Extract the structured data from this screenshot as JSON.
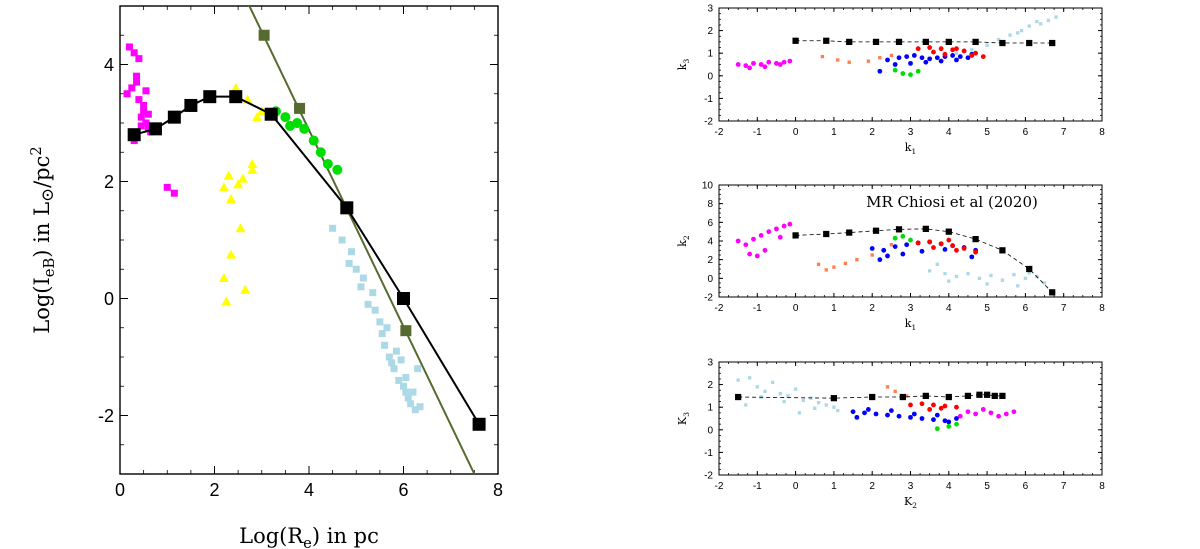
{
  "chart_data": [
    {
      "type": "scatter",
      "title": "",
      "xlabel": "Log(R",
      "xlabel_sub": "e",
      "xlabel_tail": ")  in pc",
      "ylabel": "Log(I",
      "ylabel_sub": "eB",
      "ylabel_tail": ")  in L",
      "ylabel_unit": "/pc",
      "xlim": [
        0,
        8
      ],
      "ylim": [
        -3,
        5
      ],
      "xticks": [
        "0",
        "2",
        "4",
        "6",
        "8"
      ],
      "yticks": [
        "-2",
        "0",
        "2",
        "4"
      ],
      "series": [
        {
          "name": "black-track",
          "color": "#000000",
          "marker": "square-line",
          "x": [
            0.3,
            0.75,
            1.15,
            1.5,
            1.9,
            2.45,
            3.2,
            4.8,
            6.0,
            7.6
          ],
          "y": [
            2.8,
            2.9,
            3.1,
            3.3,
            3.45,
            3.45,
            3.15,
            1.55,
            0.0,
            -2.15
          ]
        },
        {
          "name": "olive-line",
          "color": "#556b2f",
          "marker": "line",
          "x": [
            2.5,
            7.5
          ],
          "y": [
            5.4,
            -3.0
          ]
        },
        {
          "name": "olive-points",
          "color": "#556b2f",
          "marker": "square",
          "x": [
            3.05,
            3.8,
            6.05
          ],
          "y": [
            4.5,
            3.25,
            -0.55
          ]
        },
        {
          "name": "magenta",
          "color": "#ff00ff",
          "marker": "square",
          "x": [
            0.2,
            0.3,
            0.35,
            0.25,
            0.4,
            0.5,
            0.45,
            0.55,
            0.6,
            0.35,
            0.15,
            0.5,
            0.65,
            1.0,
            1.15,
            0.3,
            0.4,
            0.55,
            0.45,
            0.6
          ],
          "y": [
            4.3,
            4.2,
            3.8,
            3.6,
            3.4,
            3.3,
            3.1,
            3.0,
            2.9,
            3.7,
            3.5,
            3.2,
            2.85,
            1.9,
            1.8,
            2.7,
            4.1,
            3.55,
            2.95,
            3.15
          ]
        },
        {
          "name": "yellow",
          "color": "#ffff00",
          "marker": "triangle",
          "x": [
            2.2,
            2.3,
            2.35,
            2.5,
            2.6,
            2.8,
            3.0,
            2.9,
            2.45,
            2.7,
            2.55,
            2.2,
            2.35,
            2.8,
            2.25,
            2.65
          ],
          "y": [
            1.9,
            2.1,
            1.7,
            1.95,
            2.05,
            2.2,
            3.2,
            3.1,
            3.6,
            3.4,
            1.2,
            0.35,
            0.75,
            2.3,
            -0.05,
            0.15
          ]
        },
        {
          "name": "green",
          "color": "#00dd00",
          "marker": "circle",
          "x": [
            3.3,
            3.5,
            3.75,
            3.9,
            4.1,
            4.25,
            4.4,
            4.6,
            3.6
          ],
          "y": [
            3.2,
            3.1,
            3.0,
            2.9,
            2.7,
            2.5,
            2.3,
            2.2,
            2.95
          ]
        },
        {
          "name": "lightblue",
          "color": "#add8e6",
          "marker": "square",
          "x": [
            4.5,
            4.7,
            4.9,
            5.0,
            5.1,
            5.25,
            5.4,
            5.5,
            5.55,
            5.6,
            5.7,
            5.75,
            5.8,
            5.9,
            6.0,
            6.05,
            6.1,
            6.15,
            6.2,
            6.25,
            6.3,
            5.35,
            5.65,
            5.85,
            6.05,
            4.85,
            5.15,
            6.35,
            5.95
          ],
          "y": [
            1.2,
            1.0,
            0.8,
            0.5,
            0.2,
            -0.1,
            -0.2,
            -0.4,
            -0.6,
            -0.8,
            -1.0,
            -1.1,
            -1.2,
            -1.4,
            -1.5,
            -1.6,
            -1.7,
            -1.8,
            -1.6,
            -1.9,
            -1.2,
            0.1,
            -0.5,
            -0.9,
            -1.35,
            0.6,
            0.35,
            -1.85,
            -1.05
          ]
        }
      ]
    },
    {
      "type": "scatter",
      "xlabel": "k",
      "xlabel_sub": "1",
      "ylabel": "k",
      "ylabel_sub": "3",
      "xlim": [
        -2,
        8
      ],
      "ylim": [
        -2,
        3
      ],
      "xticks": [
        "-2",
        "-1",
        "0",
        "1",
        "2",
        "3",
        "4",
        "5",
        "6",
        "7",
        "8"
      ],
      "yticks": [
        "-2",
        "-1",
        "0",
        "1",
        "2",
        "3"
      ],
      "series": [
        {
          "name": "black-dashed",
          "color": "#000000",
          "marker": "square-dashed",
          "x": [
            0.0,
            0.8,
            1.4,
            2.1,
            2.7,
            3.4,
            4.0,
            4.7,
            5.4,
            6.1,
            6.7
          ],
          "y": [
            1.55,
            1.55,
            1.5,
            1.5,
            1.5,
            1.5,
            1.5,
            1.5,
            1.45,
            1.45,
            1.45
          ]
        },
        {
          "name": "magenta",
          "color": "#ff00ff",
          "marker": "circle",
          "x": [
            -1.5,
            -1.3,
            -1.1,
            -0.9,
            -0.7,
            -0.5,
            -0.3,
            -0.15,
            -1.2,
            -0.8,
            -0.4
          ],
          "y": [
            0.5,
            0.45,
            0.55,
            0.5,
            0.6,
            0.55,
            0.6,
            0.65,
            0.35,
            0.4,
            0.5
          ]
        },
        {
          "name": "orange",
          "color": "#ff7f50",
          "marker": "square",
          "x": [
            0.7,
            1.1,
            1.4,
            1.9,
            2.2,
            2.5
          ],
          "y": [
            0.85,
            0.7,
            0.6,
            0.65,
            0.8,
            0.9
          ]
        },
        {
          "name": "lightblue",
          "color": "#add8e6",
          "marker": "square",
          "x": [
            4.2,
            4.6,
            5.0,
            5.3,
            5.6,
            5.9,
            6.1,
            6.4,
            6.6,
            6.8,
            5.8,
            6.3
          ],
          "y": [
            1.0,
            1.15,
            1.35,
            1.6,
            1.8,
            2.0,
            2.2,
            2.3,
            2.45,
            2.6,
            1.9,
            2.4
          ]
        },
        {
          "name": "green",
          "color": "#00dd00",
          "marker": "circle",
          "x": [
            2.6,
            2.8,
            3.0,
            3.2
          ],
          "y": [
            0.25,
            0.1,
            0.05,
            0.2
          ]
        },
        {
          "name": "red",
          "color": "#ff0000",
          "marker": "circle",
          "x": [
            3.2,
            3.5,
            3.8,
            4.1,
            4.4,
            4.7,
            3.6,
            4.2,
            4.6,
            3.9,
            4.9
          ],
          "y": [
            1.2,
            1.25,
            1.2,
            1.15,
            1.1,
            1.0,
            1.05,
            1.2,
            0.9,
            0.95,
            0.85
          ]
        },
        {
          "name": "blue",
          "color": "#0000ff",
          "marker": "circle",
          "x": [
            2.4,
            2.7,
            2.9,
            3.1,
            3.3,
            3.5,
            3.7,
            3.9,
            4.1,
            4.3,
            4.5,
            2.6,
            3.0,
            3.4,
            3.8,
            4.2,
            2.2,
            4.6
          ],
          "y": [
            0.7,
            0.8,
            0.85,
            0.9,
            0.8,
            0.75,
            0.8,
            0.85,
            0.9,
            0.85,
            0.8,
            0.5,
            0.55,
            0.6,
            0.65,
            0.7,
            0.2,
            0.95
          ]
        }
      ]
    },
    {
      "type": "scatter",
      "annotation": "MR Chiosi et al (2020)",
      "xlabel": "k",
      "xlabel_sub": "1",
      "ylabel": "k",
      "ylabel_sub": "2",
      "xlim": [
        -2,
        8
      ],
      "ylim": [
        -2,
        10
      ],
      "xticks": [
        "-2",
        "-1",
        "0",
        "1",
        "2",
        "3",
        "4",
        "5",
        "6",
        "7",
        "8"
      ],
      "yticks": [
        "-2",
        "0",
        "2",
        "4",
        "6",
        "8",
        "10"
      ],
      "series": [
        {
          "name": "black-dashed",
          "color": "#000000",
          "marker": "square-dashed",
          "x": [
            0.0,
            0.8,
            1.4,
            2.1,
            2.7,
            3.4,
            4.0,
            4.7,
            5.4,
            6.1,
            6.7
          ],
          "y": [
            4.6,
            4.75,
            4.9,
            5.1,
            5.25,
            5.3,
            5.0,
            4.2,
            3.0,
            1.0,
            -1.5
          ]
        },
        {
          "name": "magenta",
          "color": "#ff00ff",
          "marker": "circle",
          "x": [
            -1.5,
            -1.3,
            -1.1,
            -0.9,
            -0.7,
            -0.5,
            -0.3,
            -0.15,
            -1.2,
            -0.8,
            -0.4,
            -1.0
          ],
          "y": [
            4.0,
            3.6,
            4.2,
            4.6,
            5.0,
            5.3,
            5.6,
            5.8,
            2.6,
            3.0,
            4.4,
            2.4
          ]
        },
        {
          "name": "orange",
          "color": "#ff7f50",
          "marker": "square",
          "x": [
            0.6,
            0.8,
            1.0,
            1.3,
            1.6,
            2.0,
            2.5
          ],
          "y": [
            1.5,
            0.9,
            1.2,
            1.6,
            2.0,
            2.5,
            3.6
          ]
        },
        {
          "name": "lightblue",
          "color": "#add8e6",
          "marker": "square",
          "x": [
            3.5,
            3.9,
            4.2,
            4.5,
            4.8,
            5.1,
            5.4,
            5.7,
            6.0,
            6.3,
            6.5,
            4.0,
            5.0,
            5.8,
            3.7,
            6.1
          ],
          "y": [
            0.8,
            0.5,
            0.2,
            0.5,
            0.0,
            0.3,
            -0.2,
            0.4,
            0.0,
            0.2,
            -0.5,
            -0.3,
            -0.6,
            -0.8,
            1.5,
            0.6
          ]
        },
        {
          "name": "green",
          "color": "#00dd00",
          "marker": "circle",
          "x": [
            2.6,
            2.8,
            3.0
          ],
          "y": [
            4.3,
            4.5,
            4.1
          ]
        },
        {
          "name": "red",
          "color": "#ff0000",
          "marker": "circle",
          "x": [
            3.2,
            3.5,
            3.8,
            4.1,
            4.4,
            4.7,
            3.6,
            4.2,
            4.0
          ],
          "y": [
            3.8,
            3.9,
            3.7,
            3.5,
            3.2,
            2.8,
            3.3,
            3.0,
            4.1
          ]
        },
        {
          "name": "blue",
          "color": "#0000ff",
          "marker": "circle",
          "x": [
            2.0,
            2.3,
            2.6,
            2.9,
            3.2,
            3.5,
            3.8,
            4.1,
            4.4,
            4.7,
            2.4,
            2.8,
            3.3,
            3.9,
            2.2,
            4.6
          ],
          "y": [
            3.2,
            3.0,
            3.4,
            3.6,
            3.8,
            3.9,
            3.7,
            3.5,
            3.3,
            3.0,
            2.4,
            2.6,
            2.9,
            3.1,
            2.0,
            2.3
          ]
        }
      ]
    },
    {
      "type": "scatter",
      "xlabel": "K",
      "xlabel_sub": "2",
      "ylabel": "K",
      "ylabel_sub": "3",
      "xlim": [
        -2,
        8
      ],
      "ylim": [
        -2,
        3
      ],
      "xticks": [
        "-2",
        "-1",
        "0",
        "1",
        "2",
        "3",
        "4",
        "5",
        "6",
        "7",
        "8"
      ],
      "yticks": [
        "-2",
        "-1",
        "0",
        "1",
        "2",
        "3"
      ],
      "series": [
        {
          "name": "black-dashed",
          "color": "#000000",
          "marker": "square-dashed",
          "x": [
            -1.5,
            1.0,
            2.0,
            2.8,
            3.4,
            4.0,
            4.5,
            4.8,
            5.0,
            5.2,
            5.4
          ],
          "y": [
            1.45,
            1.4,
            1.45,
            1.45,
            1.5,
            1.45,
            1.5,
            1.55,
            1.55,
            1.5,
            1.5
          ]
        },
        {
          "name": "lightblue",
          "color": "#add8e6",
          "marker": "square",
          "x": [
            -1.5,
            -1.2,
            -1.0,
            -0.8,
            -0.6,
            -0.4,
            -0.2,
            0.0,
            0.2,
            0.4,
            0.6,
            0.8,
            1.0,
            -0.9,
            -0.3,
            0.5,
            1.1,
            -1.3,
            0.1
          ],
          "y": [
            2.2,
            2.3,
            1.9,
            1.7,
            2.1,
            1.6,
            1.5,
            1.8,
            1.3,
            1.4,
            1.2,
            1.1,
            1.0,
            1.45,
            1.25,
            0.95,
            0.85,
            1.1,
            0.75
          ]
        },
        {
          "name": "magenta",
          "color": "#ff00ff",
          "marker": "circle",
          "x": [
            4.3,
            4.5,
            4.7,
            4.9,
            5.1,
            5.3,
            5.5,
            5.7
          ],
          "y": [
            0.6,
            0.8,
            0.7,
            0.9,
            0.75,
            0.6,
            0.7,
            0.8
          ]
        },
        {
          "name": "orange",
          "color": "#ff7f50",
          "marker": "square",
          "x": [
            2.4,
            2.6,
            2.9
          ],
          "y": [
            1.9,
            1.7,
            1.5
          ]
        },
        {
          "name": "green",
          "color": "#00dd00",
          "marker": "circle",
          "x": [
            3.7,
            4.0,
            4.2
          ],
          "y": [
            0.05,
            0.15,
            0.25
          ]
        },
        {
          "name": "red",
          "color": "#ff0000",
          "marker": "circle",
          "x": [
            3.0,
            3.3,
            3.6,
            3.9,
            4.2,
            3.5,
            3.8
          ],
          "y": [
            1.1,
            1.15,
            1.1,
            1.05,
            1.0,
            0.9,
            0.95
          ]
        },
        {
          "name": "blue",
          "color": "#0000ff",
          "marker": "circle",
          "x": [
            1.5,
            1.8,
            2.1,
            2.4,
            2.7,
            3.0,
            3.3,
            3.6,
            3.9,
            4.2,
            1.9,
            2.5,
            3.1,
            3.7,
            1.6,
            4.0
          ],
          "y": [
            0.8,
            0.75,
            0.7,
            0.65,
            0.6,
            0.55,
            0.5,
            0.45,
            0.4,
            0.5,
            0.9,
            0.85,
            0.7,
            0.65,
            0.55,
            0.35
          ]
        }
      ]
    }
  ]
}
